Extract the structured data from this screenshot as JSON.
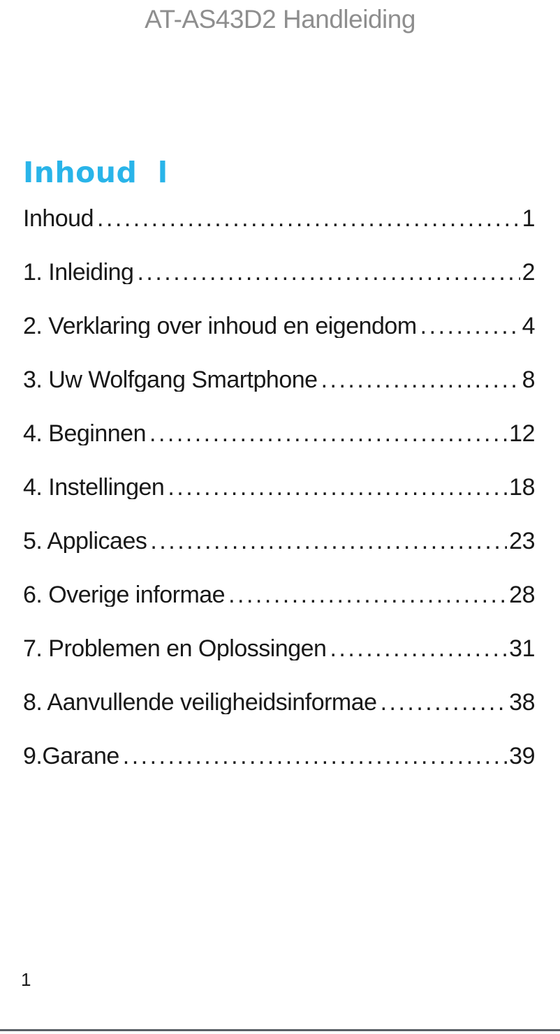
{
  "page": {
    "header_title": "AT-AS43D2 Handleiding",
    "section_heading": "Inhoud  l",
    "footer_page_number": "1"
  },
  "colors": {
    "header_gray": "#8e8e8e",
    "heading_blue": "#29b4e9",
    "body_text": "#181818",
    "footer_rule_gray": "#5b6066"
  },
  "toc": {
    "entries": [
      {
        "title": "Inhoud",
        "page": "1"
      },
      {
        "title": "1. Inleiding",
        "page": "2"
      },
      {
        "title": "2. Verklaring over inhoud en eigendom",
        "page": "4"
      },
      {
        "title": "3. Uw Wolfgang Smartphone",
        "page": "8"
      },
      {
        "title": "4. Beginnen",
        "page": "12"
      },
      {
        "title": "4. Instellingen",
        "page": "18"
      },
      {
        "title": "5. Applicaes",
        "page": "23"
      },
      {
        "title": "6. Overige informae",
        "page": "28"
      },
      {
        "title": "7. Problemen en Oplossingen",
        "page": "31"
      },
      {
        "title": "8. Aanvullende veiligheidsinformae",
        "page": "38"
      },
      {
        "title": "9.Garane",
        "page": "39"
      }
    ]
  }
}
